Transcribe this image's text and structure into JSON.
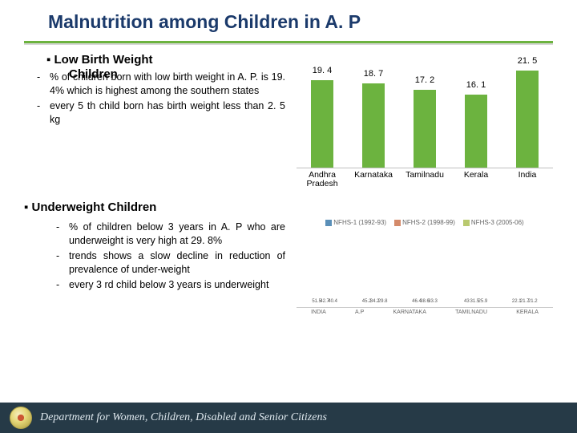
{
  "title": "Malnutrition among Children in A. P",
  "section1": {
    "heading_line1": "Low Birth Weight",
    "heading_line2": "Children",
    "bullets": [
      "% of children  born with low birth weight in A. P. is 19. 4% which is highest among the southern states",
      "every 5 th child born has birth weight less than 2. 5 kg"
    ]
  },
  "chart1": {
    "type": "bar",
    "categories": [
      "Andhra Pradesh",
      "Karnataka",
      "Tamilnadu",
      "Kerala",
      "India"
    ],
    "values": [
      19.4,
      18.7,
      17.2,
      16.1,
      21.5
    ],
    "labels": [
      "19. 4",
      "18. 7",
      "17. 2",
      "16. 1",
      "21. 5"
    ],
    "bar_color": "#6cb33f",
    "ylim": [
      0,
      24
    ],
    "label_fontsize": 11,
    "axis_fontsize": 10.5,
    "background_color": "#ffffff",
    "axis_line_color": "#bfbfbf"
  },
  "section2": {
    "heading": "Underweight Children",
    "bullets": [
      "% of children below 3 years in A. P who  are underweight is very high at 29. 8%",
      "trends shows a slow decline in reduction of prevalence of under-weight",
      "every 3 rd child below 3 years is underweight"
    ]
  },
  "chart2": {
    "type": "grouped-bar",
    "series": [
      {
        "name": "NFHS-1 (1992-93)",
        "color": "#5a8fb8"
      },
      {
        "name": "NFHS-2 (1998-99)",
        "color": "#d48a6a"
      },
      {
        "name": "NFHS-3 (2005-06)",
        "color": "#b9c96f"
      }
    ],
    "categories": [
      "INDIA",
      "A.P",
      "KARNATAKA",
      "TAMILNADU",
      "KERALA"
    ],
    "values": [
      [
        51.5,
        42.7,
        40.4
      ],
      [
        45.2,
        34.2,
        29.8
      ],
      [
        46.4,
        38.6,
        33.3
      ],
      [
        43.0,
        31.5,
        25.9
      ],
      [
        22.1,
        21.7,
        21.2
      ]
    ],
    "ylim": [
      0,
      55
    ],
    "value_fontsize": 6,
    "axis_fontsize": 7,
    "background_color": "#ffffff"
  },
  "footer": {
    "text": "Department for Women, Children, Disabled and Senior Citizens"
  }
}
